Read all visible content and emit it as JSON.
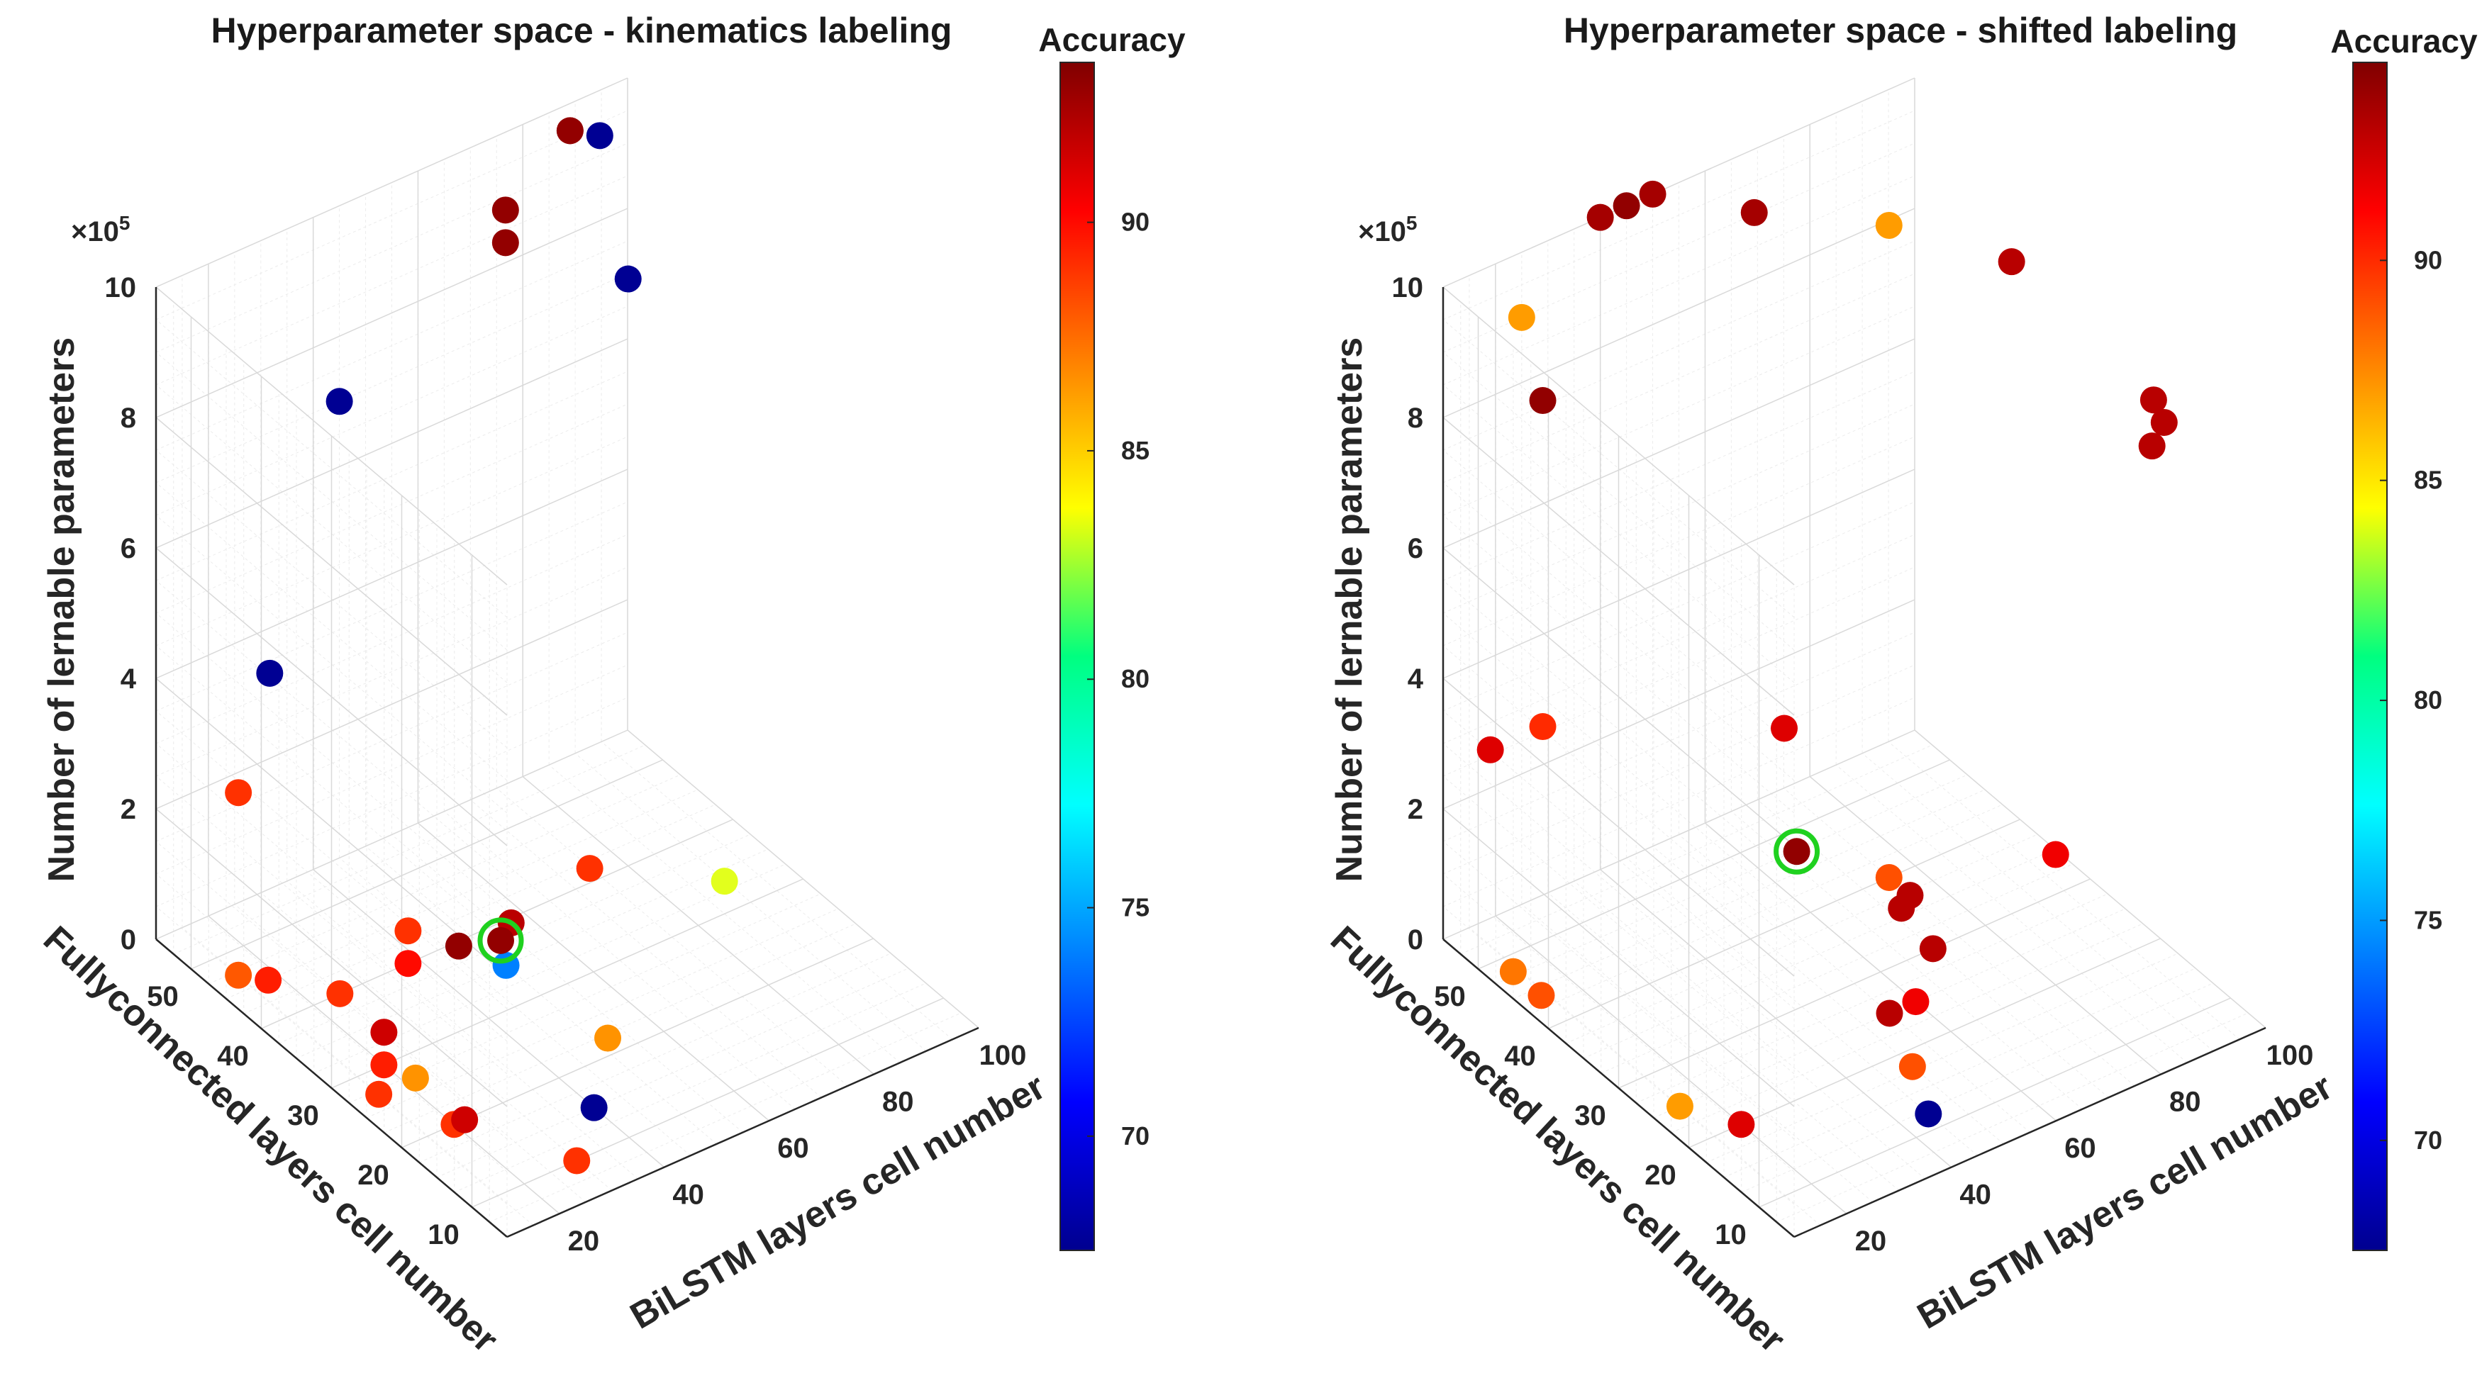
{
  "chart_data": [
    {
      "type": "scatter3d",
      "title": "Hyperparameter space - kinematics labeling",
      "xlabel": "BiLSTM layers cell number",
      "ylabel": "Fullyconnected layers cell number",
      "zlabel": "Number of lernable parameters",
      "z_exponent_base": "×10",
      "z_exponent_power": "5",
      "xlim": [
        10,
        100
      ],
      "ylim": [
        5,
        55
      ],
      "zlim": [
        0,
        1000000
      ],
      "xticks": [
        "20",
        "40",
        "60",
        "80",
        "100"
      ],
      "yticks": [
        "10",
        "20",
        "30",
        "40",
        "50"
      ],
      "zticks": [
        "0",
        "2",
        "4",
        "6",
        "8",
        "10"
      ],
      "grid": true,
      "colorbar": {
        "label": "Accuracy",
        "range": [
          67.5,
          93.5
        ],
        "ticks": [
          "70",
          "75",
          "80",
          "85",
          "90"
        ]
      },
      "points": [
        {
          "x": 15,
          "y": 47,
          "z": 280000,
          "acc": 89
        },
        {
          "x": 15,
          "y": 47,
          "z": 0,
          "acc": 88
        },
        {
          "x": 18,
          "y": 45,
          "z": 0,
          "acc": 89.5
        },
        {
          "x": 25,
          "y": 40,
          "z": 0,
          "acc": 89
        },
        {
          "x": 20,
          "y": 30,
          "z": 50000,
          "acc": 91.5
        },
        {
          "x": 20,
          "y": 30,
          "z": 0,
          "acc": 89.5
        },
        {
          "x": 22,
          "y": 27,
          "z": 0,
          "acc": 86.5
        },
        {
          "x": 15,
          "y": 27,
          "z": 0,
          "acc": 89
        },
        {
          "x": 20,
          "y": 20,
          "z": 0,
          "acc": 89
        },
        {
          "x": 22,
          "y": 20,
          "z": 0,
          "acc": 91.5
        },
        {
          "x": 40,
          "y": 15,
          "z": 0,
          "acc": 68
        },
        {
          "x": 30,
          "y": 10,
          "z": 0,
          "acc": 89
        },
        {
          "x": 52,
          "y": 22,
          "z": 0,
          "acc": 86.5
        },
        {
          "x": 50,
          "y": 35,
          "z": 0,
          "acc": 74
        },
        {
          "x": 38,
          "y": 40,
          "z": 50000,
          "acc": 89
        },
        {
          "x": 38,
          "y": 40,
          "z": 0,
          "acc": 90
        },
        {
          "x": 45,
          "y": 38,
          "z": 20000,
          "acc": 93
        },
        {
          "x": 55,
          "y": 38,
          "z": 20000,
          "acc": 92
        },
        {
          "x": 53,
          "y": 38,
          "z": 0,
          "acc": 93
        },
        {
          "x": 70,
          "y": 38,
          "z": 50000,
          "acc": 89
        },
        {
          "x": 85,
          "y": 30,
          "z": 50000,
          "acc": 83
        },
        {
          "x": 25,
          "y": 50,
          "z": 400000,
          "acc": 68
        },
        {
          "x": 45,
          "y": 55,
          "z": 700000,
          "acc": 68
        },
        {
          "x": 80,
          "y": 40,
          "z": 900000,
          "acc": 68
        },
        {
          "x": 70,
          "y": 50,
          "z": 900000,
          "acc": 93
        },
        {
          "x": 70,
          "y": 50,
          "z": 950000,
          "acc": 93
        },
        {
          "x": 85,
          "y": 52,
          "z": 1000000,
          "acc": 93
        },
        {
          "x": 85,
          "y": 52,
          "z": 1000000,
          "acc": 93
        },
        {
          "x": 88,
          "y": 50,
          "z": 1000000,
          "acc": 68
        }
      ],
      "highlight": {
        "x": 53,
        "y": 38,
        "z": 0
      }
    },
    {
      "type": "scatter3d",
      "title": "Hyperparameter space - shifted labeling",
      "xlabel": "BiLSTM layers cell number",
      "ylabel": "Fullyconnected layers cell number",
      "zlabel": "Number of lernable parameters",
      "z_exponent_base": "×10",
      "z_exponent_power": "5",
      "xlim": [
        10,
        100
      ],
      "ylim": [
        5,
        55
      ],
      "zlim": [
        0,
        1000000
      ],
      "xticks": [
        "20",
        "40",
        "60",
        "80",
        "100"
      ],
      "yticks": [
        "10",
        "20",
        "30",
        "40",
        "50"
      ],
      "zticks": [
        "0",
        "2",
        "4",
        "6",
        "8",
        "10"
      ],
      "grid": true,
      "colorbar": {
        "label": "Accuracy",
        "range": [
          67.5,
          94.5
        ],
        "ticks": [
          "70",
          "75",
          "80",
          "85",
          "90"
        ]
      },
      "points": [
        {
          "x": 14,
          "y": 48,
          "z": 0,
          "acc": 88
        },
        {
          "x": 14,
          "y": 44,
          "z": 0,
          "acc": 89
        },
        {
          "x": 15,
          "y": 25,
          "z": 0,
          "acc": 87
        },
        {
          "x": 20,
          "y": 20,
          "z": 0,
          "acc": 92
        },
        {
          "x": 15,
          "y": 52,
          "z": 300000,
          "acc": 92
        },
        {
          "x": 25,
          "y": 52,
          "z": 300000,
          "acc": 90
        },
        {
          "x": 55,
          "y": 40,
          "z": 300000,
          "acc": 92
        },
        {
          "x": 48,
          "y": 33,
          "z": 200000,
          "acc": 94
        },
        {
          "x": 45,
          "y": 12,
          "z": 0,
          "acc": 68
        },
        {
          "x": 50,
          "y": 18,
          "z": 0,
          "acc": 89
        },
        {
          "x": 55,
          "y": 25,
          "z": 0,
          "acc": 93
        },
        {
          "x": 60,
          "y": 25,
          "z": 0,
          "acc": 91.5
        },
        {
          "x": 70,
          "y": 30,
          "z": 0,
          "acc": 93
        },
        {
          "x": 72,
          "y": 36,
          "z": 0,
          "acc": 93
        },
        {
          "x": 75,
          "y": 37,
          "z": 0,
          "acc": 93
        },
        {
          "x": 75,
          "y": 40,
          "z": 0,
          "acc": 89
        },
        {
          "x": 80,
          "y": 20,
          "z": 200000,
          "acc": 91.5
        },
        {
          "x": 25,
          "y": 52,
          "z": 800000,
          "acc": 94
        },
        {
          "x": 25,
          "y": 55,
          "z": 900000,
          "acc": 87
        },
        {
          "x": 85,
          "y": 10,
          "z": 900000,
          "acc": 93
        },
        {
          "x": 90,
          "y": 12,
          "z": 900000,
          "acc": 93
        },
        {
          "x": 92,
          "y": 15,
          "z": 900000,
          "acc": 93
        },
        {
          "x": 85,
          "y": 30,
          "z": 1000000,
          "acc": 93
        },
        {
          "x": 75,
          "y": 40,
          "z": 1000000,
          "acc": 87
        },
        {
          "x": 60,
          "y": 48,
          "z": 1000000,
          "acc": 93.5
        },
        {
          "x": 50,
          "y": 55,
          "z": 1000000,
          "acc": 93.5
        },
        {
          "x": 45,
          "y": 55,
          "z": 1000000,
          "acc": 94
        },
        {
          "x": 40,
          "y": 55,
          "z": 1000000,
          "acc": 93.5
        }
      ],
      "highlight": {
        "x": 48,
        "y": 33,
        "z": 200000
      }
    }
  ]
}
